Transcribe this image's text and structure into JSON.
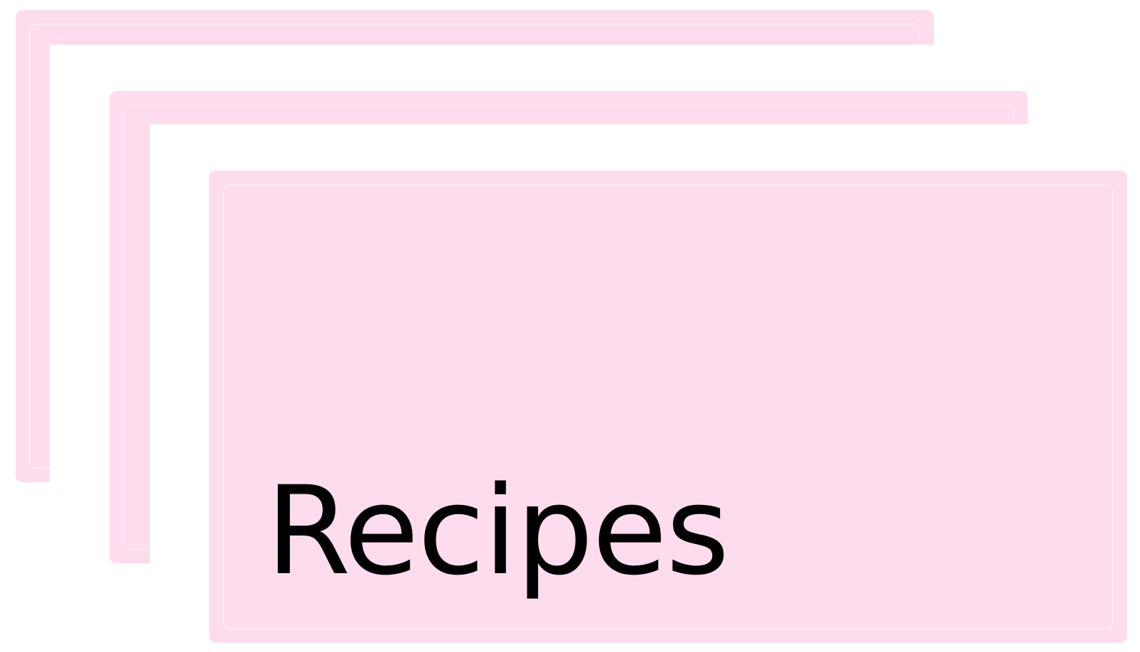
{
  "title": "Recipes",
  "colors": {
    "card_fill": "#fddcee",
    "background": "#ffffff",
    "text": "#000000"
  }
}
